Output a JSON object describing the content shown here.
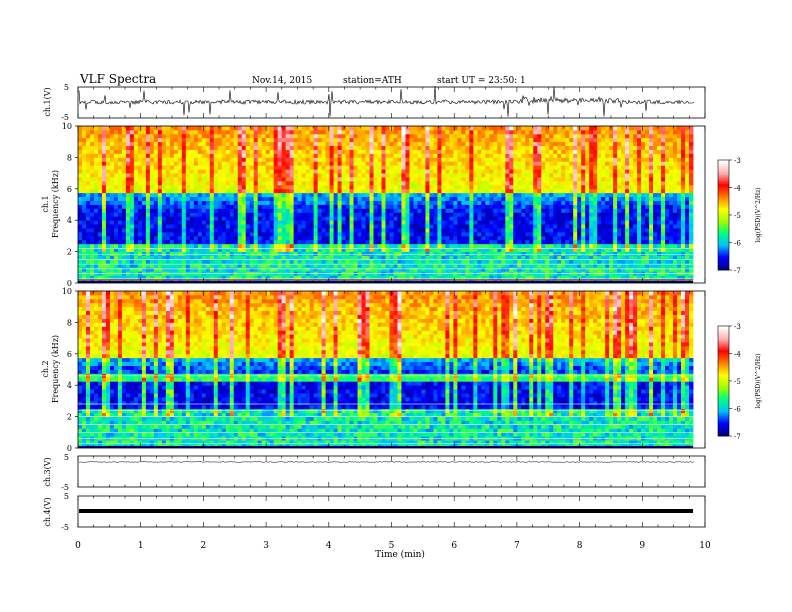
{
  "header": {
    "title": "VLF Spectra",
    "date": "Nov.14, 2015",
    "station": "station=ATH",
    "start": "start UT =  23:50: 1"
  },
  "chart_data": [
    {
      "type": "line",
      "name": "ch1-waveform",
      "ylabel": "ch.1(V)",
      "ylim": [
        -5,
        5
      ],
      "yticks": [
        "5",
        "-5"
      ]
    },
    {
      "type": "heatmap",
      "name": "ch1-spectrogram",
      "ylabel": "Frequency (kHz)",
      "channel_label": "ch.1",
      "ylim": [
        0,
        10
      ],
      "yticks": [
        0,
        2,
        4,
        6,
        8,
        10
      ],
      "colorbar": {
        "label": "log(PSD)(V^2/Hz)",
        "range": [
          -7,
          -3
        ],
        "ticks": [
          -3,
          -4,
          -5,
          -6,
          -7
        ],
        "colors": [
          "#000080",
          "#0000ff",
          "#00c0ff",
          "#00ff80",
          "#a0ff00",
          "#ffff00",
          "#ff8000",
          "#ff0000",
          "#ffb0b0",
          "#ffffff"
        ]
      }
    },
    {
      "type": "heatmap",
      "name": "ch2-spectrogram",
      "ylabel": "Frequency (kHz)",
      "channel_label": "ch.2",
      "ylim": [
        0,
        10
      ],
      "yticks": [
        0,
        2,
        4,
        6,
        8,
        10
      ],
      "colorbar": {
        "label": "log(PSD)(V^2/Hz)",
        "range": [
          -7,
          -3
        ],
        "ticks": [
          -3,
          -4,
          -5,
          -6,
          -7
        ]
      }
    },
    {
      "type": "line",
      "name": "ch3-waveform",
      "ylabel": "ch.3(V)",
      "ylim": [
        -5,
        5
      ],
      "yticks": [
        "5",
        "-5"
      ]
    },
    {
      "type": "line",
      "name": "ch4-waveform",
      "ylabel": "ch.4(V)",
      "ylim": [
        -5,
        5
      ],
      "yticks": [
        "5",
        "-5"
      ]
    }
  ],
  "x_axis": {
    "label": "Time (min)",
    "xlim": [
      0,
      10
    ],
    "ticks": [
      "0",
      "1",
      "2",
      "3",
      "4",
      "5",
      "6",
      "7",
      "8",
      "9",
      "10"
    ]
  }
}
